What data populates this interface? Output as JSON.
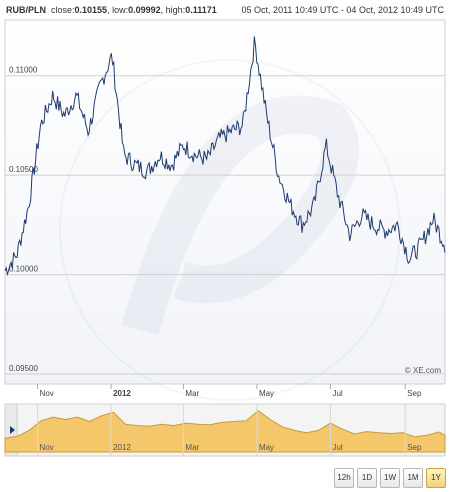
{
  "header": {
    "pair": "RUB/PLN",
    "close_label": "close:",
    "close_value": "0.10155",
    "low_label": "low:",
    "low_value": "0.09992",
    "high_label": "high:",
    "high_value": "0.11171",
    "date_range": "05 Oct, 2011 10:49 UTC - 04 Oct, 2012 10:49 UTC"
  },
  "watermark": "© XE.com",
  "range_buttons": [
    "12h",
    "1D",
    "1W",
    "1M",
    "1Y"
  ],
  "active_range": "1Y",
  "colors": {
    "line": "#1f3b6e",
    "navigator_fill": "#f4c86a",
    "navigator_line": "#c89a3a",
    "grid": "#cfcfcf",
    "active_button": "#f2d27a"
  },
  "chart_data": {
    "type": "line",
    "series": [
      {
        "name": "RUB/PLN",
        "x": [
          "2011-10-05",
          "2011-10-15",
          "2011-10-25",
          "2011-11-04",
          "2011-11-14",
          "2011-11-24",
          "2011-12-04",
          "2011-12-14",
          "2011-12-24",
          "2012-01-03",
          "2012-01-13",
          "2012-01-23",
          "2012-02-02",
          "2012-02-12",
          "2012-02-22",
          "2012-03-03",
          "2012-03-13",
          "2012-03-23",
          "2012-04-02",
          "2012-04-12",
          "2012-04-22",
          "2012-05-02",
          "2012-05-12",
          "2012-05-22",
          "2012-06-01",
          "2012-06-11",
          "2012-06-21",
          "2012-07-01",
          "2012-07-11",
          "2012-07-21",
          "2012-07-31",
          "2012-08-10",
          "2012-08-20",
          "2012-08-30",
          "2012-09-09",
          "2012-09-19",
          "2012-09-29",
          "2012-10-04"
        ],
        "values": [
          0.1002,
          0.101,
          0.1035,
          0.1075,
          0.109,
          0.108,
          0.109,
          0.1072,
          0.1095,
          0.111,
          0.106,
          0.1055,
          0.1052,
          0.106,
          0.1055,
          0.1065,
          0.106,
          0.1058,
          0.1068,
          0.1072,
          0.1075,
          0.1117,
          0.108,
          0.105,
          0.1035,
          0.1025,
          0.1035,
          0.1065,
          0.104,
          0.102,
          0.103,
          0.1025,
          0.1022,
          0.1025,
          0.1008,
          0.1015,
          0.1028,
          0.1015
        ]
      }
    ],
    "x_tick_labels": [
      "Nov",
      "2012",
      "Mar",
      "May",
      "Jul",
      "Sep"
    ],
    "y_tick_labels": [
      "0.11000",
      "0.10500",
      "0.10000",
      "0.09500"
    ],
    "y_ticks": [
      0.11,
      0.105,
      0.1,
      0.095
    ],
    "ylim": [
      0.0945,
      0.1128
    ],
    "grid": "horizontal",
    "navigator": {
      "x_tick_labels": [
        "Nov",
        "2012",
        "Mar",
        "May",
        "Jul",
        "Sep"
      ]
    }
  }
}
